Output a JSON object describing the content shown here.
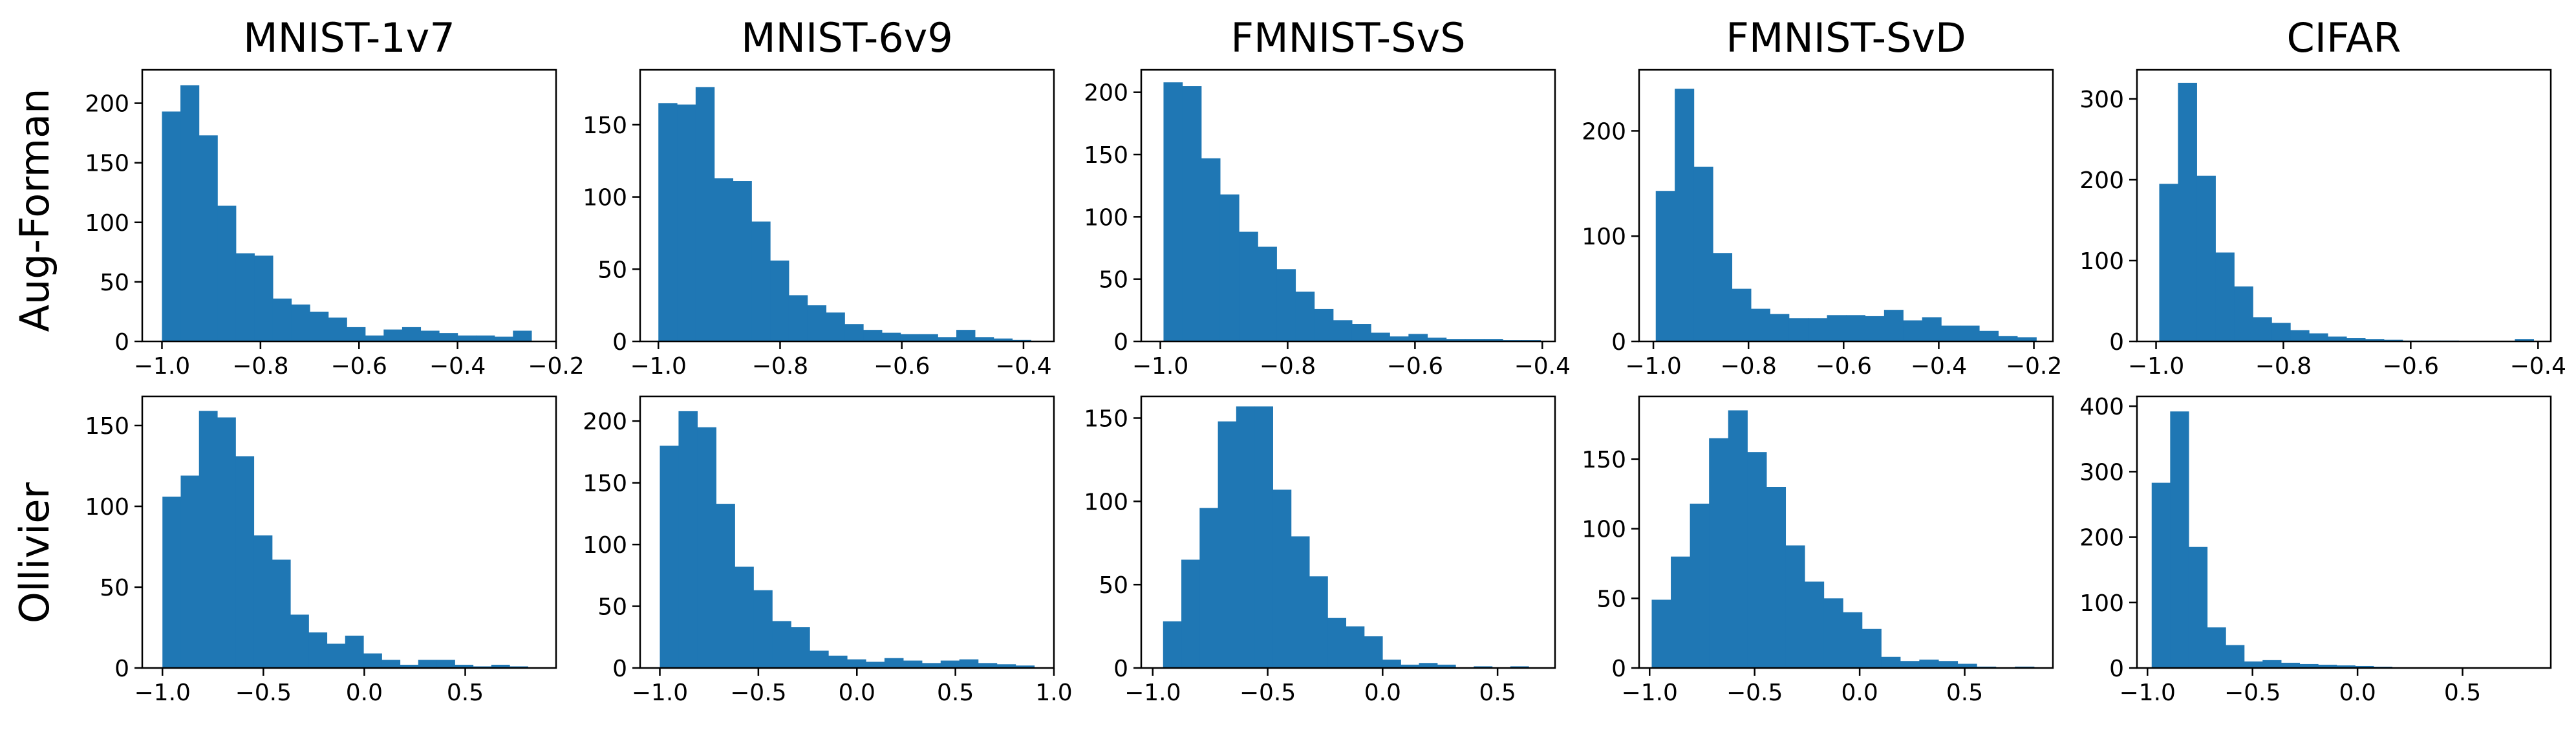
{
  "chart_data": {
    "type": "histogram-grid",
    "bar_color": "#1f77b4",
    "columns": [
      "MNIST-1v7",
      "MNIST-6v9",
      "FMNIST-SvS",
      "FMNIST-SvD",
      "CIFAR"
    ],
    "rows": [
      "Aug-Forman",
      "Ollivier"
    ],
    "panels": [
      {
        "row": "Aug-Forman",
        "column": "MNIST-1v7",
        "xlim": [
          -1.04,
          -0.2
        ],
        "ylim": [
          0,
          228
        ],
        "xticks": [
          -1.0,
          -0.8,
          -0.6,
          -0.4,
          -0.2
        ],
        "xtick_labels": [
          "−1.0",
          "−0.8",
          "−0.6",
          "−0.4",
          "−0.2"
        ],
        "yticks": [
          0,
          50,
          100,
          150,
          200
        ],
        "yticks_labels": [
          "0",
          "50",
          "100",
          "150",
          "200"
        ],
        "bin_start": -1.0,
        "bin_width": 0.0375,
        "counts": [
          193,
          215,
          173,
          114,
          74,
          72,
          36,
          31,
          25,
          20,
          12,
          5,
          10,
          12,
          9,
          7,
          5,
          5,
          4,
          9
        ]
      },
      {
        "row": "Aug-Forman",
        "column": "MNIST-6v9",
        "xlim": [
          -1.03,
          -0.35
        ],
        "ylim": [
          0,
          188
        ],
        "xticks": [
          -1.0,
          -0.8,
          -0.6,
          -0.4
        ],
        "xtick_labels": [
          "−1.0",
          "−0.8",
          "−0.6",
          "−0.4"
        ],
        "yticks": [
          0,
          50,
          100,
          150
        ],
        "yticks_labels": [
          "0",
          "50",
          "100",
          "150"
        ],
        "bin_start": -1.0,
        "bin_width": 0.0306,
        "counts": [
          165,
          164,
          176,
          113,
          111,
          83,
          56,
          32,
          25,
          20,
          12,
          8,
          6,
          5,
          5,
          3,
          8,
          3,
          2,
          1
        ]
      },
      {
        "row": "Aug-Forman",
        "column": "FMNIST-SvS",
        "xlim": [
          -1.03,
          -0.38
        ],
        "ylim": [
          0,
          218
        ],
        "xticks": [
          -1.0,
          -0.8,
          -0.6,
          -0.4
        ],
        "xtick_labels": [
          "−1.0",
          "−0.8",
          "−0.6",
          "−0.4"
        ],
        "yticks": [
          0,
          50,
          100,
          150,
          200
        ],
        "yticks_labels": [
          "0",
          "50",
          "100",
          "150",
          "200"
        ],
        "bin_start": -0.995,
        "bin_width": 0.0296,
        "counts": [
          208,
          205,
          147,
          118,
          88,
          76,
          58,
          40,
          26,
          17,
          14,
          7,
          4,
          6,
          3,
          2,
          2,
          2,
          1,
          1
        ]
      },
      {
        "row": "Aug-Forman",
        "column": "FMNIST-SvD",
        "xlim": [
          -1.03,
          -0.16
        ],
        "ylim": [
          0,
          258
        ],
        "xticks": [
          -1.0,
          -0.8,
          -0.6,
          -0.4,
          -0.2
        ],
        "xtick_labels": [
          "−1.0",
          "−0.8",
          "−0.6",
          "−0.4",
          "−0.2"
        ],
        "yticks": [
          0,
          100,
          200
        ],
        "yticks_labels": [
          "0",
          "100",
          "200"
        ],
        "bin_start": -0.995,
        "bin_width": 0.04,
        "counts": [
          143,
          240,
          166,
          84,
          50,
          31,
          26,
          22,
          22,
          25,
          25,
          24,
          30,
          20,
          23,
          15,
          15,
          10,
          5,
          4
        ]
      },
      {
        "row": "Aug-Forman",
        "column": "CIFAR",
        "xlim": [
          -1.03,
          -0.38
        ],
        "ylim": [
          0,
          336
        ],
        "xticks": [
          -1.0,
          -0.8,
          -0.6,
          -0.4
        ],
        "xtick_labels": [
          "−1.0",
          "−0.8",
          "−0.6",
          "−0.4"
        ],
        "yticks": [
          0,
          100,
          200,
          300
        ],
        "yticks_labels": [
          "0",
          "100",
          "200",
          "300"
        ],
        "bin_start": -0.995,
        "bin_width": 0.0294,
        "counts": [
          195,
          320,
          205,
          110,
          68,
          30,
          23,
          14,
          10,
          6,
          4,
          3,
          2,
          1,
          1,
          1,
          0,
          0,
          0,
          3
        ]
      },
      {
        "row": "Ollivier",
        "column": "MNIST-1v7",
        "xlim": [
          -1.1,
          0.95
        ],
        "ylim": [
          0,
          168
        ],
        "xticks": [
          -1.0,
          -0.5,
          0.0,
          0.5
        ],
        "xtick_labels": [
          "−1.0",
          "−0.5",
          "0.0",
          "0.5"
        ],
        "yticks": [
          0,
          50,
          100,
          150
        ],
        "yticks_labels": [
          "0",
          "50",
          "100",
          "150"
        ],
        "bin_start": -1.0,
        "bin_width": 0.0905,
        "counts": [
          106,
          119,
          159,
          155,
          131,
          82,
          67,
          33,
          22,
          15,
          20,
          9,
          5,
          2,
          5,
          5,
          2,
          1,
          2,
          1
        ]
      },
      {
        "row": "Ollivier",
        "column": "MNIST-6v9",
        "xlim": [
          -1.1,
          1.0
        ],
        "ylim": [
          0,
          220
        ],
        "xticks": [
          -1.0,
          -0.5,
          0.0,
          0.5,
          1.0
        ],
        "xtick_labels": [
          "−1.0",
          "−0.5",
          "0.0",
          "0.5",
          "1.0"
        ],
        "yticks": [
          0,
          50,
          100,
          150,
          200
        ],
        "yticks_labels": [
          "0",
          "50",
          "100",
          "150",
          "200"
        ],
        "bin_start": -1.0,
        "bin_width": 0.095,
        "counts": [
          180,
          208,
          195,
          133,
          82,
          63,
          38,
          33,
          14,
          10,
          7,
          5,
          8,
          6,
          4,
          6,
          7,
          4,
          3,
          2
        ]
      },
      {
        "row": "Ollivier",
        "column": "FMNIST-SvS",
        "xlim": [
          -1.05,
          0.75
        ],
        "ylim": [
          0,
          163
        ],
        "xticks": [
          -1.0,
          -0.5,
          0.0,
          0.5
        ],
        "xtick_labels": [
          "−1.0",
          "−0.5",
          "0.0",
          "0.5"
        ],
        "yticks": [
          0,
          50,
          100,
          150
        ],
        "yticks_labels": [
          "0",
          "50",
          "100",
          "150"
        ],
        "bin_start": -0.955,
        "bin_width": 0.0795,
        "counts": [
          28,
          65,
          96,
          148,
          157,
          157,
          107,
          79,
          55,
          30,
          25,
          19,
          5,
          2,
          3,
          2,
          0,
          1,
          0,
          1
        ]
      },
      {
        "row": "Ollivier",
        "column": "FMNIST-SvD",
        "xlim": [
          -1.05,
          0.92
        ],
        "ylim": [
          0,
          195
        ],
        "xticks": [
          -1.0,
          -0.5,
          0.0,
          0.5
        ],
        "xtick_labels": [
          "−1.0",
          "−0.5",
          "0.0",
          "0.5"
        ],
        "yticks": [
          0,
          50,
          100,
          150
        ],
        "yticks_labels": [
          "0",
          "50",
          "100",
          "150"
        ],
        "bin_start": -0.99,
        "bin_width": 0.091,
        "counts": [
          49,
          80,
          118,
          165,
          185,
          155,
          130,
          88,
          62,
          50,
          40,
          28,
          8,
          5,
          6,
          5,
          3,
          1,
          0,
          1
        ]
      },
      {
        "row": "Ollivier",
        "column": "CIFAR",
        "xlim": [
          -1.05,
          0.92
        ],
        "ylim": [
          0,
          415
        ],
        "xticks": [
          -1.0,
          -0.5,
          0.0,
          0.5
        ],
        "xtick_labels": [
          "−1.0",
          "−0.5",
          "0.0",
          "0.5"
        ],
        "yticks": [
          0,
          100,
          200,
          300,
          400
        ],
        "yticks_labels": [
          "0",
          "100",
          "200",
          "300",
          "400"
        ],
        "bin_start": -0.98,
        "bin_width": 0.088,
        "counts": [
          283,
          392,
          185,
          62,
          35,
          10,
          12,
          8,
          6,
          5,
          4,
          3,
          2,
          1,
          1,
          1,
          1,
          0,
          0,
          1
        ]
      }
    ]
  }
}
